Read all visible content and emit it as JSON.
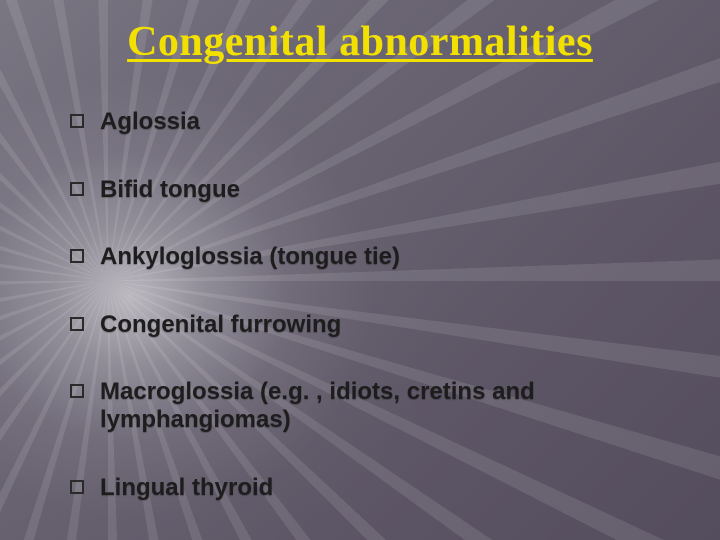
{
  "title": {
    "text": "Congenital abnormalities",
    "color": "#f2e100",
    "fontsize": 42
  },
  "list": {
    "item_color": "#1d1d1d",
    "item_fontsize": 24,
    "item_gap": 40,
    "bullet_border_color": "#2a2a2a",
    "items": [
      {
        "text": "Aglossia"
      },
      {
        "text": "Bifid tongue"
      },
      {
        "text": "Ankyloglossia (tongue tie)"
      },
      {
        "text": "Congenital furrowing"
      },
      {
        "text": "Macroglossia (e.g. , idiots, cretins and lymphangiomas)"
      },
      {
        "text": "Lingual thyroid"
      }
    ]
  },
  "background": {
    "base_gradient_start": "#7a7682",
    "base_gradient_end": "#544d5d",
    "light_center": "#ffffff"
  }
}
